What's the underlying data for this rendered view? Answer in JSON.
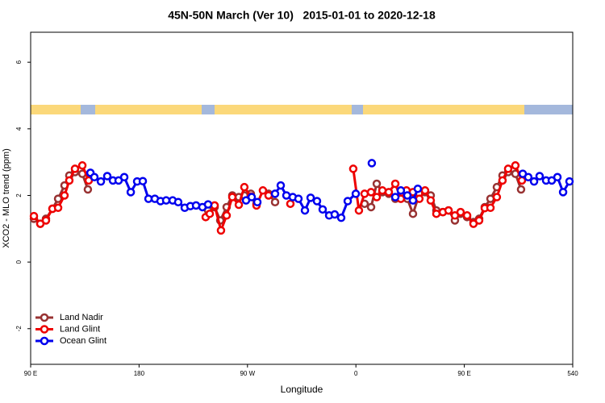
{
  "chart_data": {
    "type": "line",
    "title": "45N-50N March (Ver 10)   2015-01-01 to 2020-12-18",
    "xlabel": "Longitude",
    "ylabel": "XCO2 - MLO trend (ppm)",
    "xlim": [
      90,
      540
    ],
    "ylim": [
      -3.07,
      6.9
    ],
    "xticks": [
      {
        "value": 90,
        "label": "90 E"
      },
      180,
      {
        "value": 270,
        "label": "90 W"
      },
      {
        "value": 360,
        "label": "0"
      },
      {
        "value": 450,
        "label": "90 E"
      },
      540
    ],
    "yticks": [
      -2,
      0,
      2,
      4,
      6
    ],
    "grid": false,
    "legend": "bottom-left",
    "series": [
      {
        "name": "Land Nadir",
        "color": "#983232",
        "x": [
          92.7,
          98.0,
          102.7,
          108.1,
          112.8,
          118.1,
          122.1,
          126.8,
          132.9,
          137.5,
          null,
          237.3,
          242.7,
          247.4,
          252.7,
          257.4,
          262.8,
          267.4,
          272.8,
          277.5,
          null,
          287.5,
          292.9,
          null,
          367.2,
          372.6,
          377.3,
          382.0,
          387.3,
          392.7,
          397.3,
          402.7,
          407.4,
          412.7,
          417.4,
          422.1,
          426.8,
          432.2,
          436.9,
          442.2,
          446.9,
          452.3,
          457.6,
          462.3,
          467.0,
          471.7,
          477.0,
          481.7,
          486.4,
          492.4,
          497.1
        ],
        "values": [
          1.3,
          1.15,
          1.3,
          1.6,
          1.9,
          2.3,
          2.6,
          2.7,
          2.65,
          2.18,
          null,
          1.55,
          1.65,
          1.25,
          1.65,
          2.0,
          1.95,
          2.0,
          2.05,
          1.75,
          null,
          2.05,
          1.8,
          null,
          1.75,
          1.65,
          2.35,
          2.1,
          2.05,
          1.9,
          2.0,
          1.9,
          1.45,
          2.05,
          2.1,
          2.0,
          1.55,
          1.5,
          1.55,
          1.25,
          1.45,
          1.35,
          1.2,
          1.3,
          1.65,
          1.9,
          2.25,
          2.6,
          2.7,
          2.65,
          2.18
        ]
      },
      {
        "name": "Land Glint",
        "color": "#ee0000",
        "x": [
          92.7,
          98.0,
          102.7,
          108.1,
          112.8,
          118.1,
          122.1,
          126.8,
          132.9,
          138.2,
          null,
          235.3,
          238.7,
          242.7,
          248.0,
          252.7,
          257.4,
          262.8,
          267.4,
          272.8,
          277.5,
          282.8,
          287.5,
          null,
          305.6,
          null,
          357.8,
          362.5,
          367.2,
          372.6,
          377.3,
          382.0,
          387.3,
          392.7,
          397.3,
          402.0,
          407.4,
          412.7,
          417.4,
          422.1,
          426.8,
          432.2,
          436.9,
          442.2,
          446.9,
          452.3,
          457.6,
          462.3,
          467.0,
          471.7,
          477.0,
          481.7,
          486.4,
          492.4,
          497.8
        ],
        "values": [
          1.38,
          1.15,
          1.25,
          1.6,
          1.63,
          2.0,
          2.45,
          2.8,
          2.9,
          2.45,
          null,
          1.35,
          1.45,
          1.7,
          0.95,
          1.4,
          1.95,
          1.72,
          2.25,
          1.97,
          1.7,
          2.15,
          2.0,
          null,
          1.75,
          null,
          2.8,
          1.55,
          2.05,
          2.1,
          1.95,
          2.15,
          2.1,
          2.35,
          1.9,
          2.15,
          2.1,
          1.9,
          2.15,
          1.85,
          1.45,
          1.5,
          1.55,
          1.4,
          1.5,
          1.4,
          1.15,
          1.25,
          1.62,
          1.63,
          1.95,
          2.45,
          2.8,
          2.9,
          2.45
        ]
      },
      {
        "name": "Ocean Glint",
        "color": "#0000ee",
        "x": [
          139.6,
          142.9,
          148.3,
          153.6,
          158.3,
          163.0,
          167.7,
          173.1,
          178.4,
          183.1,
          187.8,
          193.1,
          197.8,
          202.5,
          207.9,
          212.5,
          217.9,
          222.6,
          227.3,
          232.6,
          237.3,
          null,
          268.8,
          273.5,
          278.2,
          null,
          292.9,
          297.6,
          302.3,
          307.6,
          312.3,
          317.7,
          322.4,
          327.7,
          332.4,
          337.8,
          342.4,
          347.8,
          353.2,
          359.9,
          null,
          373.2,
          null,
          392.7,
          397.3,
          402.7,
          407.4,
          411.4,
          null,
          498.5,
          503.1,
          507.9,
          512.5,
          517.9,
          522.6,
          527.3,
          532.0,
          537.3
        ],
        "values": [
          2.68,
          2.55,
          2.42,
          2.58,
          2.45,
          2.45,
          2.55,
          2.1,
          2.42,
          2.43,
          1.9,
          1.9,
          1.83,
          1.85,
          1.85,
          1.8,
          1.63,
          1.68,
          1.7,
          1.65,
          1.73,
          null,
          1.85,
          1.95,
          1.8,
          null,
          2.05,
          2.3,
          2.0,
          1.95,
          1.9,
          1.55,
          1.93,
          1.83,
          1.58,
          1.4,
          1.43,
          1.33,
          1.83,
          2.05,
          null,
          2.97,
          null,
          1.95,
          2.15,
          2.0,
          1.85,
          2.2,
          null,
          2.65,
          2.55,
          2.42,
          2.58,
          2.45,
          2.45,
          2.55,
          2.1,
          2.42
        ]
      }
    ]
  }
}
